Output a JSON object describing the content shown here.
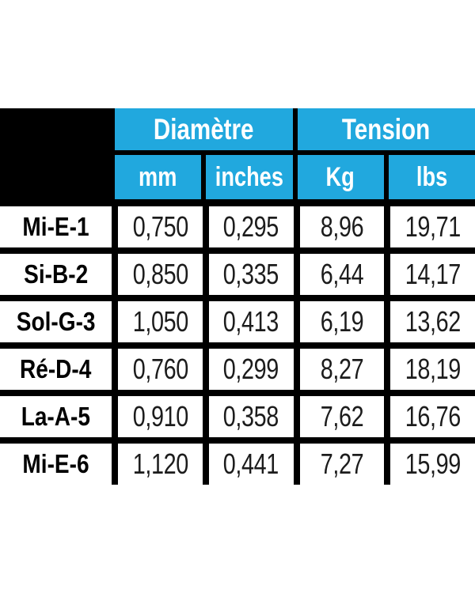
{
  "chart_data": {
    "type": "table",
    "column_groups": [
      {
        "label": "Diamètre",
        "sub_columns": [
          "mm",
          "inches"
        ]
      },
      {
        "label": "Tension",
        "sub_columns": [
          "Kg",
          "lbs"
        ]
      }
    ],
    "unit_headers": [
      "mm",
      "inches",
      "Kg",
      "lbs"
    ],
    "rows": [
      {
        "label": "Mi-E-1",
        "values": [
          "0,750",
          "0,295",
          "8,96",
          "19,71"
        ]
      },
      {
        "label": "Si-B-2",
        "values": [
          "0,850",
          "0,335",
          "6,44",
          "14,17"
        ]
      },
      {
        "label": "Sol-G-3",
        "values": [
          "1,050",
          "0,413",
          "6,19",
          "13,62"
        ]
      },
      {
        "label": "Ré-D-4",
        "values": [
          "0,760",
          "0,299",
          "8,27",
          "18,19"
        ]
      },
      {
        "label": "La-A-5",
        "values": [
          "0,910",
          "0,358",
          "7,62",
          "16,76"
        ]
      },
      {
        "label": "Mi-E-6",
        "values": [
          "1,120",
          "0,441",
          "7,27",
          "15,99"
        ]
      }
    ],
    "colors": {
      "header_accent": "#21a8de",
      "header_text": "#ffffff",
      "grid": "#000000",
      "value_text": "#1c1c1c",
      "background": "#ffffff"
    }
  }
}
